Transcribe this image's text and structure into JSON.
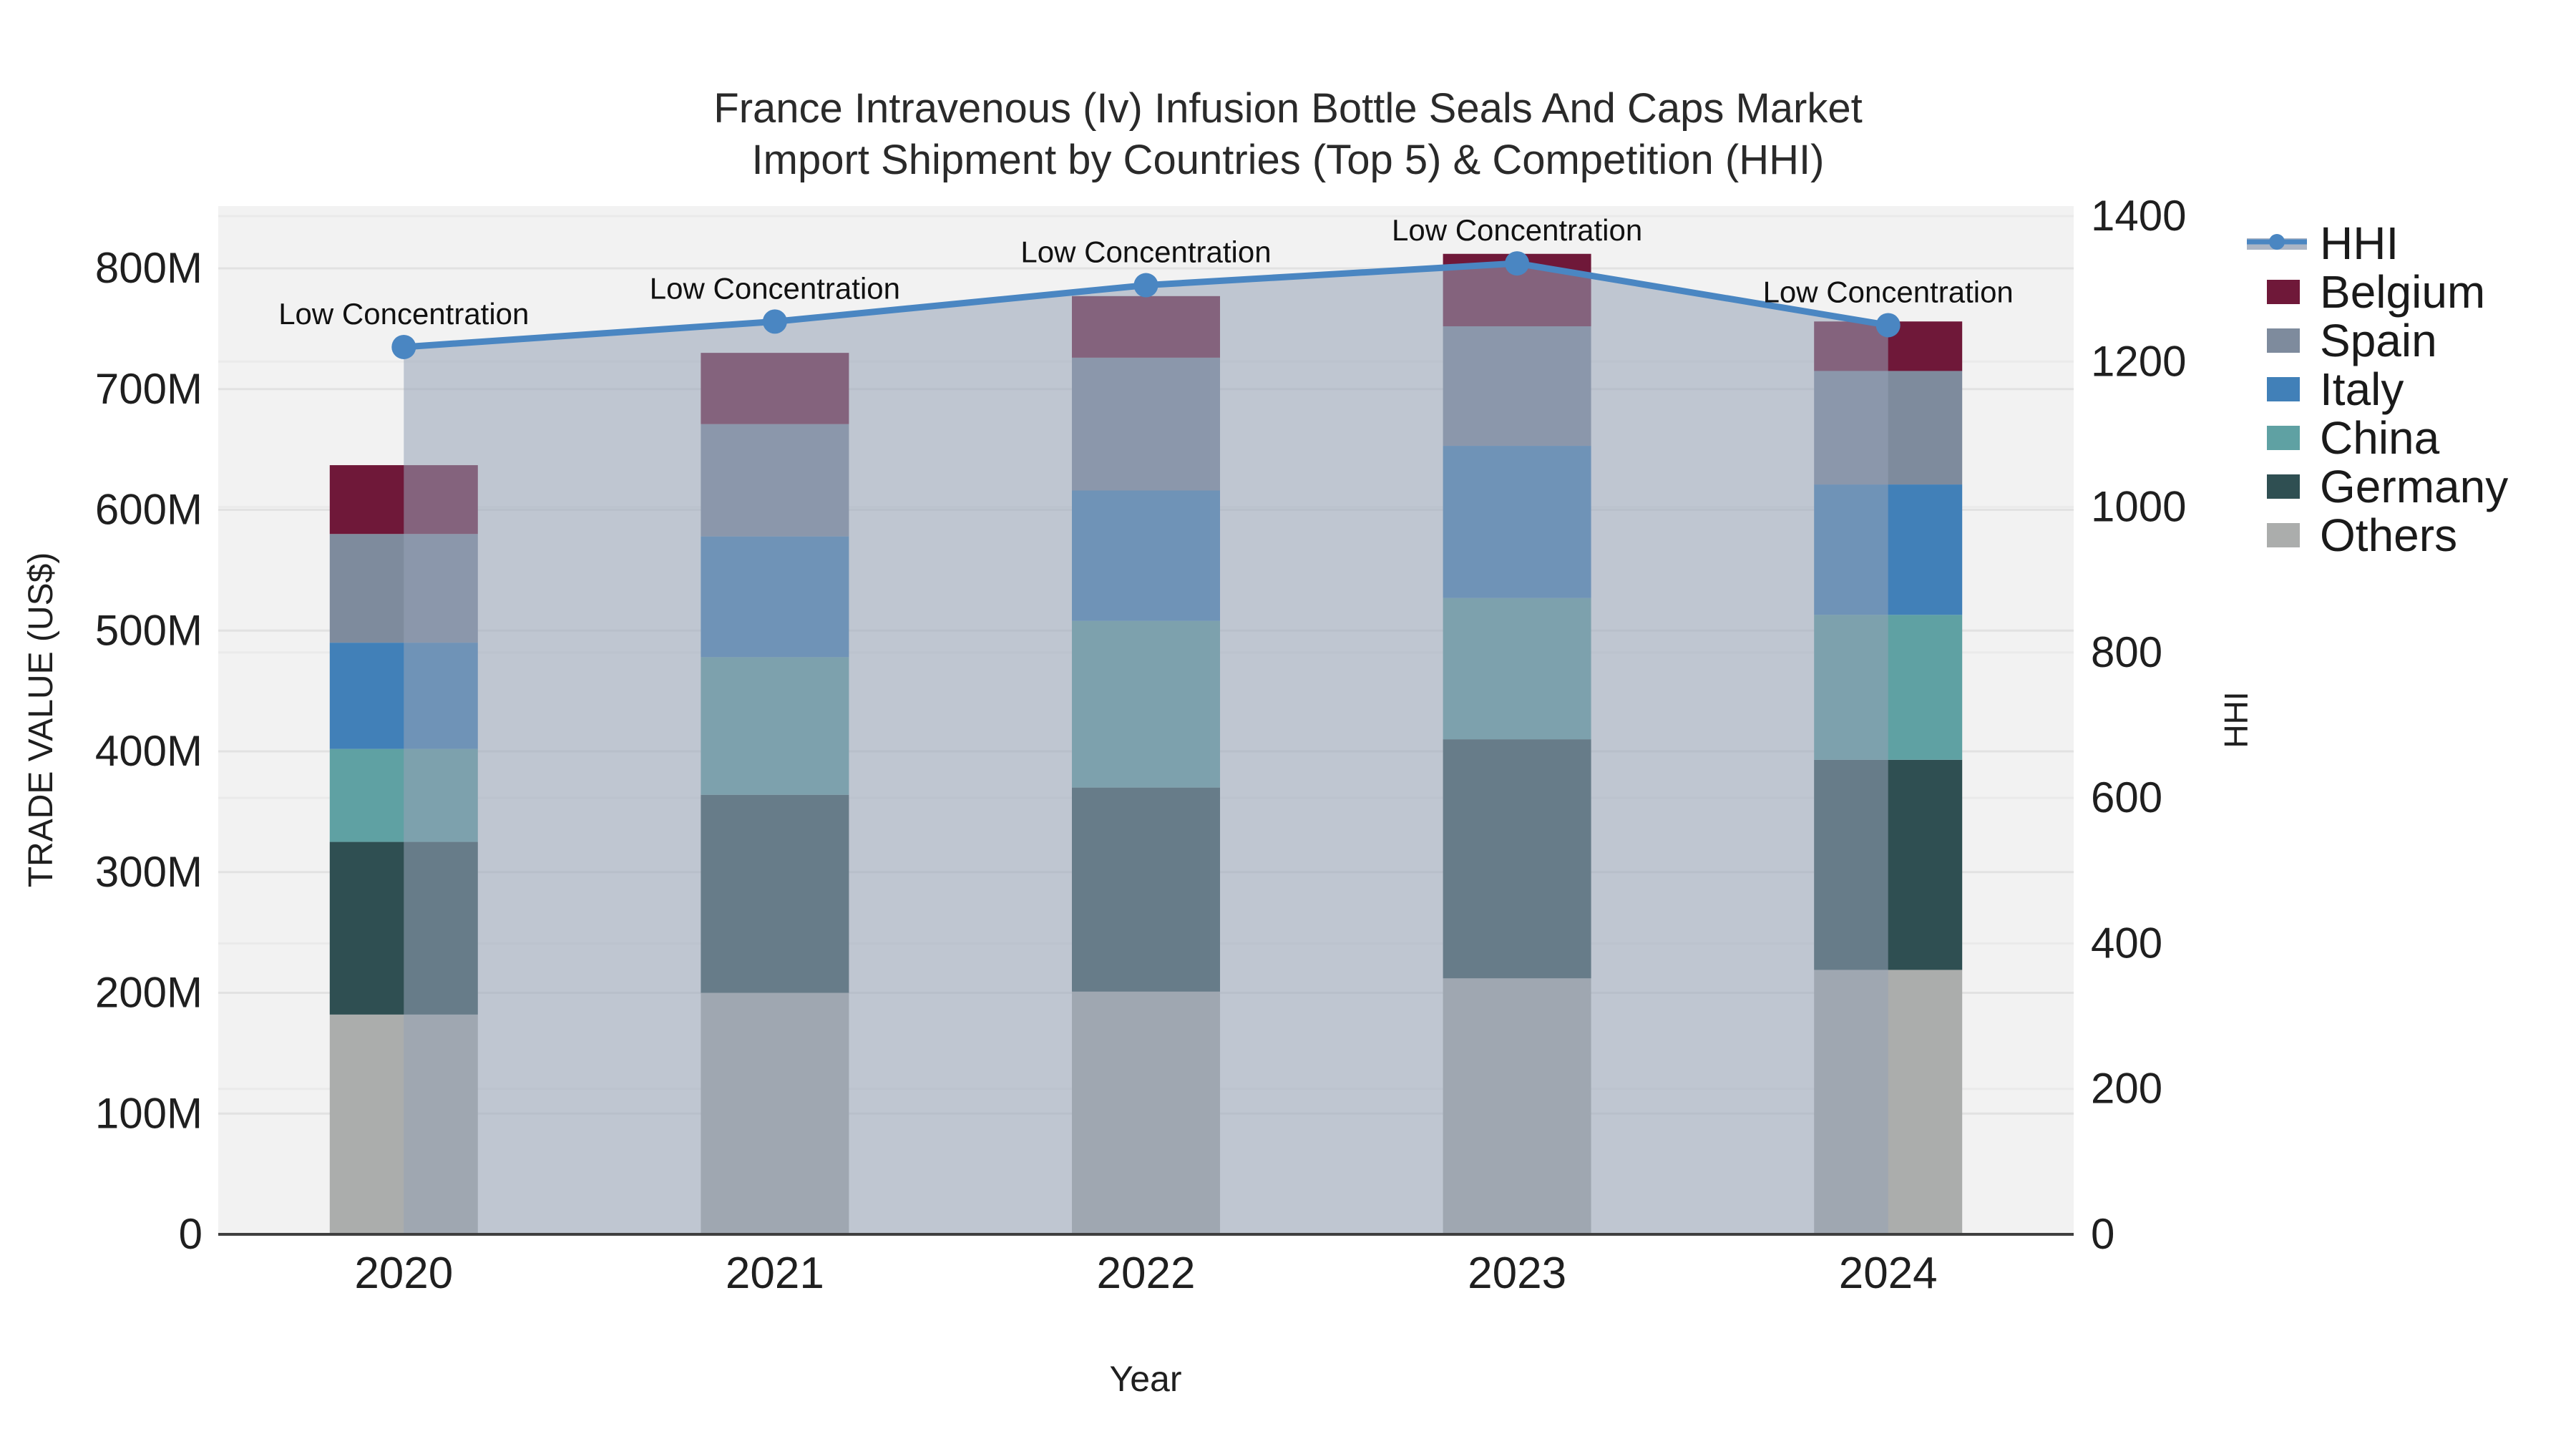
{
  "title": {
    "line1": "France Intravenous (Iv) Infusion Bottle Seals And Caps Market",
    "line2": "Import Shipment by Countries (Top 5) & Competition (HHI)"
  },
  "axes": {
    "left": {
      "title": "TRADE VALUE (US$)",
      "ticks": [
        "0",
        "100M",
        "200M",
        "300M",
        "400M",
        "500M",
        "600M",
        "700M",
        "800M"
      ],
      "tick_values": [
        0,
        100,
        200,
        300,
        400,
        500,
        600,
        700,
        800
      ],
      "max": 800
    },
    "right": {
      "title": "HHI",
      "ticks": [
        "0",
        "200",
        "400",
        "600",
        "800",
        "1000",
        "1200",
        "1400"
      ],
      "tick_values": [
        0,
        200,
        400,
        600,
        800,
        1000,
        1200,
        1400
      ],
      "max": 1400
    },
    "x": {
      "title": "Year",
      "categories": [
        "2020",
        "2021",
        "2022",
        "2023",
        "2024"
      ]
    }
  },
  "chart_data": {
    "type": "bar",
    "subtype": "stacked-bars-with-line",
    "categories": [
      "2020",
      "2021",
      "2022",
      "2023",
      "2024"
    ],
    "value_units": "US$ millions",
    "stack_order_bottom_to_top": [
      "Others",
      "Germany",
      "China",
      "Italy",
      "Spain",
      "Belgium"
    ],
    "series": [
      {
        "name": "Belgium",
        "color": "#6f1839",
        "values": [
          57,
          59,
          51,
          60,
          41
        ]
      },
      {
        "name": "Spain",
        "color": "#7e8b9d",
        "values": [
          90,
          93,
          110,
          99,
          94
        ]
      },
      {
        "name": "Italy",
        "color": "#4180b8",
        "values": [
          88,
          100,
          108,
          126,
          108
        ]
      },
      {
        "name": "China",
        "color": "#5fa1a3",
        "values": [
          77,
          114,
          138,
          117,
          120
        ]
      },
      {
        "name": "Germany",
        "color": "#2f4f52",
        "values": [
          143,
          164,
          169,
          198,
          174
        ]
      },
      {
        "name": "Others",
        "color": "#abadac",
        "values": [
          182,
          200,
          201,
          212,
          219
        ]
      }
    ],
    "bar_totals": [
      637,
      730,
      777,
      812,
      756
    ],
    "line_series": {
      "name": "HHI",
      "axis": "right",
      "color": "#4a86c2",
      "area_color": "rgba(150,162,182,0.55)",
      "values": [
        1220,
        1255,
        1305,
        1335,
        1250
      ]
    },
    "annotations": [
      "Low Concentration",
      "Low Concentration",
      "Low Concentration",
      "Low Concentration",
      "Low Concentration"
    ],
    "ylim_left": [
      0,
      800
    ],
    "ylim_right": [
      0,
      1400
    ],
    "grid": "on",
    "legend_position": "right"
  },
  "legend": {
    "items": [
      {
        "label": "HHI",
        "type": "line",
        "color": "#4a86c2"
      },
      {
        "label": "Belgium",
        "type": "swatch",
        "color": "#6f1839"
      },
      {
        "label": "Spain",
        "type": "swatch",
        "color": "#7e8b9d"
      },
      {
        "label": "Italy",
        "type": "swatch",
        "color": "#4180b8"
      },
      {
        "label": "China",
        "type": "swatch",
        "color": "#5fa1a3"
      },
      {
        "label": "Germany",
        "type": "swatch",
        "color": "#2f4f52"
      },
      {
        "label": "Others",
        "type": "swatch",
        "color": "#abadac"
      }
    ]
  },
  "style": {
    "plot_bg": "#f2f2f2",
    "grid_color_major": "#e2e2e2",
    "grid_color_secondary": "#eaeaea",
    "baseline_color": "#3f3f3f",
    "tick_color": "#1f1f1f"
  }
}
